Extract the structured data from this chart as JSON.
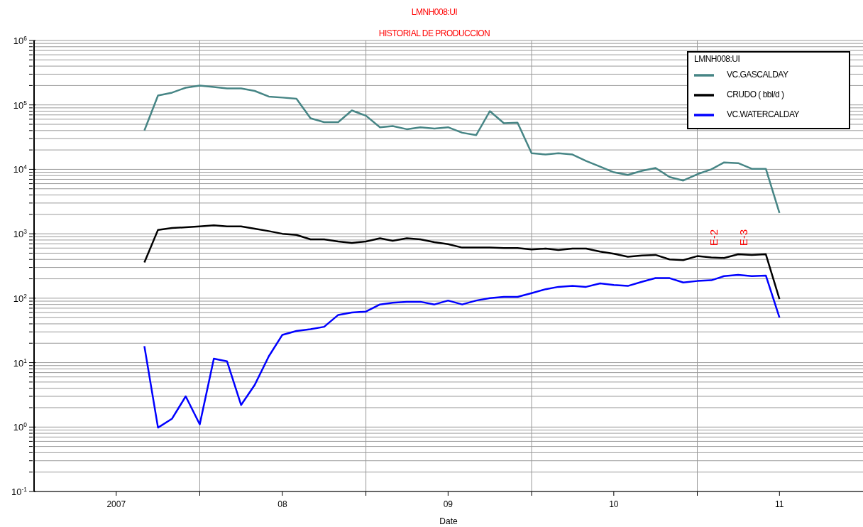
{
  "chart_data": {
    "type": "line",
    "title": "LMNH008:UI",
    "subtitle": "HISTORIAL DE PRODUCCION",
    "xlabel": "Date",
    "legend_title": "LMNH008:UI",
    "x": [
      "2007-09",
      "2007-10",
      "2007-11",
      "2007-12",
      "2008-01",
      "2008-02",
      "2008-03",
      "2008-04",
      "2008-05",
      "2008-06",
      "2008-07",
      "2008-08",
      "2008-09",
      "2008-10",
      "2008-11",
      "2008-12",
      "2009-01",
      "2009-02",
      "2009-03",
      "2009-04",
      "2009-05",
      "2009-06",
      "2009-07",
      "2009-08",
      "2009-09",
      "2009-10",
      "2009-11",
      "2009-12",
      "2010-01",
      "2010-02",
      "2010-03",
      "2010-04",
      "2010-05",
      "2010-06",
      "2010-07",
      "2010-08",
      "2010-09",
      "2010-10",
      "2010-11",
      "2010-12",
      "2011-01",
      "2011-02",
      "2011-03",
      "2011-04",
      "2011-05",
      "2011-06",
      "2011-07"
    ],
    "series": [
      {
        "name": "VC.GASCALDAY",
        "color": "#468585",
        "values": [
          40000,
          140000,
          155000,
          185000,
          200000,
          190000,
          180000,
          180000,
          165000,
          135000,
          130000,
          125000,
          62000,
          54000,
          54000,
          82000,
          68000,
          45000,
          47000,
          42000,
          45000,
          43000,
          45000,
          37000,
          34000,
          80000,
          52000,
          53000,
          17800,
          17000,
          17800,
          17000,
          13500,
          11000,
          9000,
          8200,
          9500,
          10500,
          7600,
          6700,
          8400,
          10000,
          12800,
          12500,
          10200,
          10200,
          2100
        ]
      },
      {
        "name": "CRUDO ( bbl/d )",
        "color": "#000000",
        "values": [
          360,
          1150,
          1230,
          1260,
          1300,
          1350,
          1300,
          1300,
          1200,
          1100,
          1000,
          960,
          820,
          820,
          760,
          720,
          760,
          850,
          780,
          850,
          820,
          740,
          690,
          610,
          610,
          610,
          600,
          600,
          570,
          590,
          560,
          590,
          590,
          530,
          490,
          440,
          460,
          470,
          400,
          390,
          450,
          430,
          420,
          480,
          470,
          480,
          97
        ]
      },
      {
        "name": "VC.WATERCALDAY",
        "color": "#0000ff",
        "values": [
          18,
          0.98,
          1.35,
          3,
          1.1,
          11.5,
          10.5,
          2.2,
          4.5,
          12.5,
          27,
          31,
          33,
          36,
          55,
          60,
          62,
          80,
          85,
          88,
          88,
          80,
          92,
          80,
          92,
          100,
          105,
          105,
          120,
          138,
          150,
          155,
          150,
          170,
          160,
          155,
          180,
          205,
          205,
          175,
          185,
          190,
          220,
          230,
          220,
          225,
          50
        ]
      }
    ],
    "xlim": [
      "2007-01",
      "2012-01"
    ],
    "xticks": [
      {
        "value": "2007-07",
        "label": "2007"
      },
      {
        "value": "2008-01",
        "label": null
      },
      {
        "value": "2008-07",
        "label": "08"
      },
      {
        "value": "2009-01",
        "label": null
      },
      {
        "value": "2009-07",
        "label": "09"
      },
      {
        "value": "2010-01",
        "label": null
      },
      {
        "value": "2010-07",
        "label": "10"
      },
      {
        "value": "2011-01",
        "label": null
      },
      {
        "value": "2011-07",
        "label": "11"
      }
    ],
    "log": true,
    "ylim": [
      0.1,
      1000000
    ],
    "yticks": [
      {
        "value": 0.1,
        "label": "10$^{-1}$"
      },
      {
        "value": 0.2,
        "label": null
      },
      {
        "value": 0.3,
        "label": null
      },
      {
        "value": 0.4,
        "label": null
      },
      {
        "value": 0.5,
        "label": null
      },
      {
        "value": 0.6,
        "label": null
      },
      {
        "value": 0.7,
        "label": null
      },
      {
        "value": 0.8,
        "label": null
      },
      {
        "value": 0.9,
        "label": null
      },
      {
        "value": 1,
        "label": "10$^{0}$"
      },
      {
        "value": 2,
        "label": null
      },
      {
        "value": 3,
        "label": null
      },
      {
        "value": 4,
        "label": null
      },
      {
        "value": 5,
        "label": null
      },
      {
        "value": 6,
        "label": null
      },
      {
        "value": 7,
        "label": null
      },
      {
        "value": 8,
        "label": null
      },
      {
        "value": 9,
        "label": null
      },
      {
        "value": 10,
        "label": "10$^{1}$"
      },
      {
        "value": 20,
        "label": null
      },
      {
        "value": 30,
        "label": null
      },
      {
        "value": 40,
        "label": null
      },
      {
        "value": 50,
        "label": null
      },
      {
        "value": 60,
        "label": null
      },
      {
        "value": 70,
        "label": null
      },
      {
        "value": 80,
        "label": null
      },
      {
        "value": 90,
        "label": null
      },
      {
        "value": 100,
        "label": "10$^{2}$"
      },
      {
        "value": 200,
        "label": null
      },
      {
        "value": 300,
        "label": null
      },
      {
        "value": 400,
        "label": null
      },
      {
        "value": 500,
        "label": null
      },
      {
        "value": 600,
        "label": null
      },
      {
        "value": 700,
        "label": null
      },
      {
        "value": 800,
        "label": null
      },
      {
        "value": 900,
        "label": null
      },
      {
        "value": 1000,
        "label": "10$^{3}$"
      },
      {
        "value": 2000,
        "label": null
      },
      {
        "value": 3000,
        "label": null
      },
      {
        "value": 4000,
        "label": null
      },
      {
        "value": 5000,
        "label": null
      },
      {
        "value": 6000,
        "label": null
      },
      {
        "value": 7000,
        "label": null
      },
      {
        "value": 8000,
        "label": null
      },
      {
        "value": 9000,
        "label": null
      },
      {
        "value": 10000,
        "label": "10$^{4}$"
      },
      {
        "value": 20000,
        "label": null
      },
      {
        "value": 30000,
        "label": null
      },
      {
        "value": 40000,
        "label": null
      },
      {
        "value": 50000,
        "label": null
      },
      {
        "value": 60000,
        "label": null
      },
      {
        "value": 70000,
        "label": null
      },
      {
        "value": 80000,
        "label": null
      },
      {
        "value": 90000,
        "label": null
      },
      {
        "value": 100000,
        "label": "10$^{5}$"
      },
      {
        "value": 200000,
        "label": null
      },
      {
        "value": 300000,
        "label": null
      },
      {
        "value": 400000,
        "label": null
      },
      {
        "value": 500000,
        "label": null
      },
      {
        "value": 600000,
        "label": null
      },
      {
        "value": 700000,
        "label": null
      },
      {
        "value": 800000,
        "label": null
      },
      {
        "value": 900000,
        "label": null
      },
      {
        "value": 1000000,
        "label": "10$^{6}$"
      }
    ],
    "grid": true,
    "legend": "top right",
    "marker": "none",
    "line_style": "solid",
    "annotations": [
      "E-2",
      "E-3"
    ]
  }
}
